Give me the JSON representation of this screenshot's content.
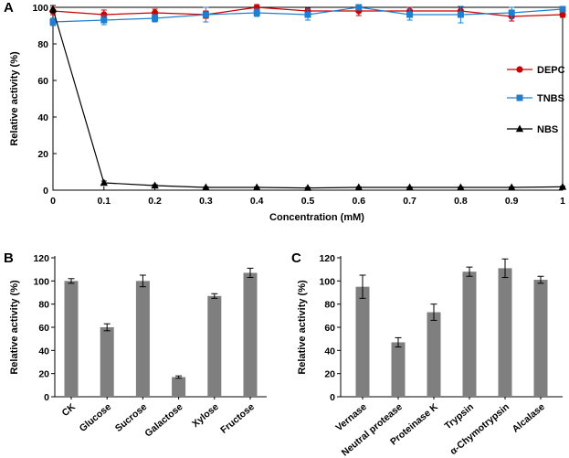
{
  "chart_data": [
    {
      "panel": "A",
      "type": "line",
      "xlabel": "Concentration (mM)",
      "ylabel": "Relative activity (%)",
      "xlim": [
        0,
        1
      ],
      "ylim": [
        0,
        100
      ],
      "x_ticks": [
        "0",
        "0.1",
        "0.2",
        "0.3",
        "0.4",
        "0.5",
        "0.6",
        "0.7",
        "0.8",
        "0.9",
        "1"
      ],
      "y_ticks": [
        "0",
        "20",
        "40",
        "60",
        "80",
        "100"
      ],
      "legend_position": "right",
      "x": [
        0,
        0.1,
        0.2,
        0.3,
        0.4,
        0.5,
        0.6,
        0.7,
        0.8,
        0.9,
        1
      ],
      "series": [
        {
          "name": "DEPC",
          "color": "#cc0000",
          "marker": "circle",
          "values": [
            98,
            96,
            97,
            96,
            100,
            98,
            98,
            98,
            98,
            95,
            96
          ],
          "errors": [
            2,
            2.5,
            2,
            2,
            1.5,
            1.5,
            2.5,
            2,
            2.5,
            2.5,
            1.5
          ]
        },
        {
          "name": "TNBS",
          "color": "#1e7fd0",
          "marker": "square",
          "values": [
            92,
            93,
            94,
            96,
            97,
            96,
            100,
            96,
            96,
            97,
            99
          ],
          "errors": [
            2,
            2.5,
            2,
            4,
            2,
            3,
            1.5,
            3,
            4.5,
            3,
            1.5
          ]
        },
        {
          "name": "NBS",
          "color": "#000000",
          "marker": "triangle",
          "values": [
            99,
            4,
            2.5,
            1.5,
            1.5,
            1.2,
            1.5,
            1.5,
            1.5,
            1.5,
            1.8
          ],
          "errors": [
            2,
            1,
            0.5,
            0.3,
            0.3,
            0.3,
            0.3,
            0.3,
            0.3,
            0.3,
            0.3
          ]
        }
      ]
    },
    {
      "panel": "B",
      "type": "bar",
      "ylabel": "Relative activity (%)",
      "ylim": [
        0,
        120
      ],
      "y_ticks": [
        "0",
        "20",
        "40",
        "60",
        "80",
        "100",
        "120"
      ],
      "bar_color": "#7f7f7f",
      "categories": [
        "CK",
        "Glucose",
        "Sucrose",
        "Galactose",
        "Xylose",
        "Fructose"
      ],
      "values": [
        100,
        60,
        100,
        17,
        87,
        107
      ],
      "errors": [
        2,
        3,
        5,
        1,
        2,
        4
      ]
    },
    {
      "panel": "C",
      "type": "bar",
      "ylabel": "Relative activity (%)",
      "ylim": [
        0,
        120
      ],
      "y_ticks": [
        "0",
        "20",
        "40",
        "60",
        "80",
        "100",
        "120"
      ],
      "bar_color": "#7f7f7f",
      "categories": [
        "Vernase",
        "Neutral protease",
        "Proteinase K",
        "Trypsin",
        "α-Chymotrypsin",
        "Alcalase"
      ],
      "values": [
        95,
        47,
        73,
        108,
        111,
        101
      ],
      "errors": [
        10,
        4,
        7,
        4,
        8,
        3
      ]
    }
  ]
}
